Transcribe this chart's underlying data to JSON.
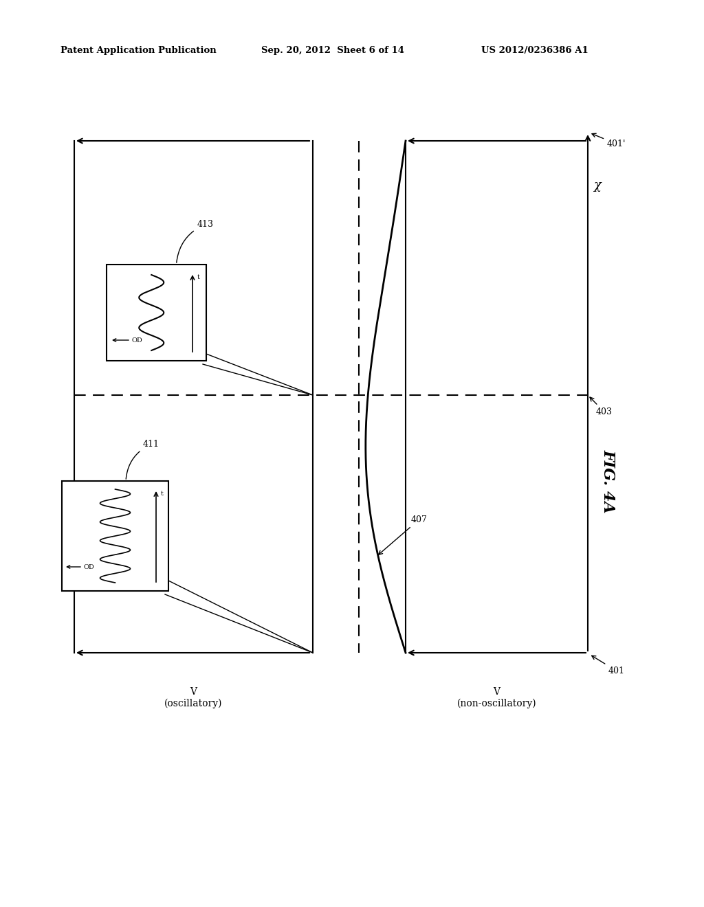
{
  "title_left": "Patent Application Publication",
  "title_center": "Sep. 20, 2012  Sheet 6 of 14",
  "title_right": "US 2012/0236386 A1",
  "fig_label": "FIG. 4A",
  "label_401": "401",
  "label_401p": "401'",
  "label_403": "403",
  "label_407": "407",
  "label_411": "411",
  "label_413": "413",
  "axis_x_label": "χ",
  "axis_v_osc": "V\n(oscillatory)",
  "axis_v_nonosc": "V\n(non-oscillatory)",
  "background_color": "#ffffff",
  "line_color": "#000000"
}
